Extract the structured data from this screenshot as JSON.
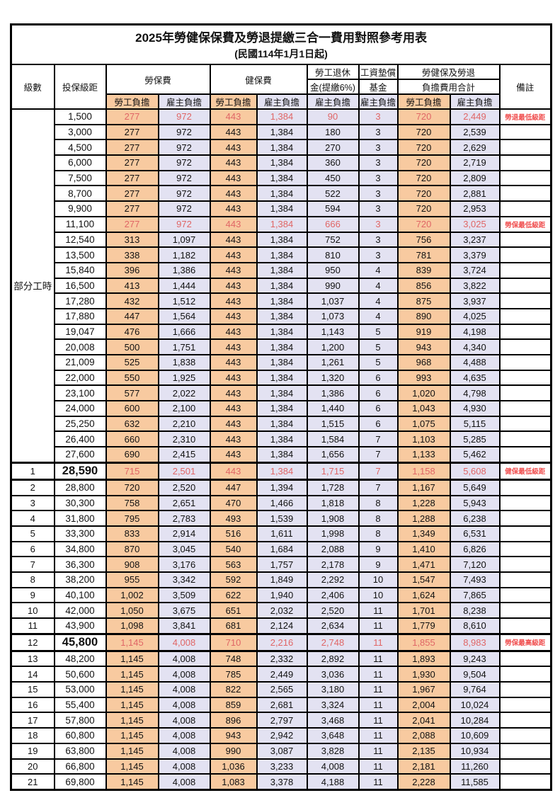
{
  "title": "2025年勞健保保費及勞退提繳三合一費用對照參考用表",
  "subtitle": "(民國114年1月1日起)",
  "colors": {
    "employee_fill": "#f8caa0",
    "employer_fill": "#e3e2f2",
    "highlight_number": "#e06666",
    "remark_red": "#f05050",
    "grid": "#000000"
  },
  "table": {
    "columns": {
      "level": "級數",
      "bracket": "投保級距",
      "labor": "勞保費",
      "health": "健保費",
      "pension_line1": "勞工退休",
      "pension_line2": "金(提繳6%)",
      "fund_line1": "工資墊償",
      "fund_line2": "基金",
      "total_line1": "勞健保及勞退",
      "total_line2": "負擔費用合計",
      "remark": "備註",
      "employee_label": "勞工負擔",
      "employer_label": "雇主負擔"
    },
    "part_time_label": "部分工時",
    "part_time_span": 23,
    "rows": [
      {
        "b": "1,500",
        "v": [
          "277",
          "972",
          "443",
          "1,384",
          "90",
          "3",
          "720",
          "2,449"
        ],
        "r": "勞退最低級距",
        "red": true
      },
      {
        "b": "3,000",
        "v": [
          "277",
          "972",
          "443",
          "1,384",
          "180",
          "3",
          "720",
          "2,539"
        ]
      },
      {
        "b": "4,500",
        "v": [
          "277",
          "972",
          "443",
          "1,384",
          "270",
          "3",
          "720",
          "2,629"
        ]
      },
      {
        "b": "6,000",
        "v": [
          "277",
          "972",
          "443",
          "1,384",
          "360",
          "3",
          "720",
          "2,719"
        ]
      },
      {
        "b": "7,500",
        "v": [
          "277",
          "972",
          "443",
          "1,384",
          "450",
          "3",
          "720",
          "2,809"
        ]
      },
      {
        "b": "8,700",
        "v": [
          "277",
          "972",
          "443",
          "1,384",
          "522",
          "3",
          "720",
          "2,881"
        ]
      },
      {
        "b": "9,900",
        "v": [
          "277",
          "972",
          "443",
          "1,384",
          "594",
          "3",
          "720",
          "2,953"
        ]
      },
      {
        "b": "11,100",
        "v": [
          "277",
          "972",
          "443",
          "1,384",
          "666",
          "3",
          "720",
          "3,025"
        ],
        "r": "勞保最低級距",
        "red": true
      },
      {
        "b": "12,540",
        "v": [
          "313",
          "1,097",
          "443",
          "1,384",
          "752",
          "3",
          "756",
          "3,237"
        ]
      },
      {
        "b": "13,500",
        "v": [
          "338",
          "1,182",
          "443",
          "1,384",
          "810",
          "3",
          "781",
          "3,379"
        ]
      },
      {
        "b": "15,840",
        "v": [
          "396",
          "1,386",
          "443",
          "1,384",
          "950",
          "4",
          "839",
          "3,724"
        ]
      },
      {
        "b": "16,500",
        "v": [
          "413",
          "1,444",
          "443",
          "1,384",
          "990",
          "4",
          "856",
          "3,822"
        ]
      },
      {
        "b": "17,280",
        "v": [
          "432",
          "1,512",
          "443",
          "1,384",
          "1,037",
          "4",
          "875",
          "3,937"
        ]
      },
      {
        "b": "17,880",
        "v": [
          "447",
          "1,564",
          "443",
          "1,384",
          "1,073",
          "4",
          "890",
          "4,025"
        ]
      },
      {
        "b": "19,047",
        "v": [
          "476",
          "1,666",
          "443",
          "1,384",
          "1,143",
          "5",
          "919",
          "4,198"
        ]
      },
      {
        "b": "20,008",
        "v": [
          "500",
          "1,751",
          "443",
          "1,384",
          "1,200",
          "5",
          "943",
          "4,340"
        ]
      },
      {
        "b": "21,009",
        "v": [
          "525",
          "1,838",
          "443",
          "1,384",
          "1,261",
          "5",
          "968",
          "4,488"
        ]
      },
      {
        "b": "22,000",
        "v": [
          "550",
          "1,925",
          "443",
          "1,384",
          "1,320",
          "6",
          "993",
          "4,635"
        ]
      },
      {
        "b": "23,100",
        "v": [
          "577",
          "2,022",
          "443",
          "1,384",
          "1,386",
          "6",
          "1,020",
          "4,798"
        ]
      },
      {
        "b": "24,000",
        "v": [
          "600",
          "2,100",
          "443",
          "1,384",
          "1,440",
          "6",
          "1,043",
          "4,930"
        ]
      },
      {
        "b": "25,250",
        "v": [
          "632",
          "2,210",
          "443",
          "1,384",
          "1,515",
          "6",
          "1,075",
          "5,115"
        ]
      },
      {
        "b": "26,400",
        "v": [
          "660",
          "2,310",
          "443",
          "1,384",
          "1,584",
          "7",
          "1,103",
          "5,285"
        ]
      },
      {
        "b": "27,600",
        "v": [
          "690",
          "2,415",
          "443",
          "1,384",
          "1,656",
          "7",
          "1,133",
          "5,462"
        ]
      },
      {
        "lv": "1",
        "b": "28,590",
        "v": [
          "715",
          "2,501",
          "443",
          "1,384",
          "1,715",
          "7",
          "1,158",
          "5,608"
        ],
        "r": "健保最低級距",
        "red": true,
        "big": true,
        "thick": true
      },
      {
        "lv": "2",
        "b": "28,800",
        "v": [
          "720",
          "2,520",
          "447",
          "1,394",
          "1,728",
          "7",
          "1,167",
          "5,649"
        ]
      },
      {
        "lv": "3",
        "b": "30,300",
        "v": [
          "758",
          "2,651",
          "470",
          "1,466",
          "1,818",
          "8",
          "1,228",
          "5,943"
        ]
      },
      {
        "lv": "4",
        "b": "31,800",
        "v": [
          "795",
          "2,783",
          "493",
          "1,539",
          "1,908",
          "8",
          "1,288",
          "6,238"
        ]
      },
      {
        "lv": "5",
        "b": "33,300",
        "v": [
          "833",
          "2,914",
          "516",
          "1,611",
          "1,998",
          "8",
          "1,349",
          "6,531"
        ]
      },
      {
        "lv": "6",
        "b": "34,800",
        "v": [
          "870",
          "3,045",
          "540",
          "1,684",
          "2,088",
          "9",
          "1,410",
          "6,826"
        ]
      },
      {
        "lv": "7",
        "b": "36,300",
        "v": [
          "908",
          "3,176",
          "563",
          "1,757",
          "2,178",
          "9",
          "1,471",
          "7,120"
        ]
      },
      {
        "lv": "8",
        "b": "38,200",
        "v": [
          "955",
          "3,342",
          "592",
          "1,849",
          "2,292",
          "10",
          "1,547",
          "7,493"
        ]
      },
      {
        "lv": "9",
        "b": "40,100",
        "v": [
          "1,002",
          "3,509",
          "622",
          "1,940",
          "2,406",
          "10",
          "1,624",
          "7,865"
        ]
      },
      {
        "lv": "10",
        "b": "42,000",
        "v": [
          "1,050",
          "3,675",
          "651",
          "2,032",
          "2,520",
          "11",
          "1,701",
          "8,238"
        ]
      },
      {
        "lv": "11",
        "b": "43,900",
        "v": [
          "1,098",
          "3,841",
          "681",
          "2,124",
          "2,634",
          "11",
          "1,779",
          "8,610"
        ]
      },
      {
        "lv": "12",
        "b": "45,800",
        "v": [
          "1,145",
          "4,008",
          "710",
          "2,216",
          "2,748",
          "11",
          "1,855",
          "8,983"
        ],
        "r": "勞保最高級距",
        "red": true,
        "big": true,
        "thick": true
      },
      {
        "lv": "13",
        "b": "48,200",
        "v": [
          "1,145",
          "4,008",
          "748",
          "2,332",
          "2,892",
          "11",
          "1,893",
          "9,243"
        ]
      },
      {
        "lv": "14",
        "b": "50,600",
        "v": [
          "1,145",
          "4,008",
          "785",
          "2,449",
          "3,036",
          "11",
          "1,930",
          "9,504"
        ]
      },
      {
        "lv": "15",
        "b": "53,000",
        "v": [
          "1,145",
          "4,008",
          "822",
          "2,565",
          "3,180",
          "11",
          "1,967",
          "9,764"
        ]
      },
      {
        "lv": "16",
        "b": "55,400",
        "v": [
          "1,145",
          "4,008",
          "859",
          "2,681",
          "3,324",
          "11",
          "2,004",
          "10,024"
        ]
      },
      {
        "lv": "17",
        "b": "57,800",
        "v": [
          "1,145",
          "4,008",
          "896",
          "2,797",
          "3,468",
          "11",
          "2,041",
          "10,284"
        ]
      },
      {
        "lv": "18",
        "b": "60,800",
        "v": [
          "1,145",
          "4,008",
          "943",
          "2,942",
          "3,648",
          "11",
          "2,088",
          "10,609"
        ]
      },
      {
        "lv": "19",
        "b": "63,800",
        "v": [
          "1,145",
          "4,008",
          "990",
          "3,087",
          "3,828",
          "11",
          "2,135",
          "10,934"
        ]
      },
      {
        "lv": "20",
        "b": "66,800",
        "v": [
          "1,145",
          "4,008",
          "1,036",
          "3,233",
          "4,008",
          "11",
          "2,181",
          "11,260"
        ]
      },
      {
        "lv": "21",
        "b": "69,800",
        "v": [
          "1,145",
          "4,008",
          "1,083",
          "3,378",
          "4,188",
          "11",
          "2,228",
          "11,585"
        ]
      }
    ]
  }
}
